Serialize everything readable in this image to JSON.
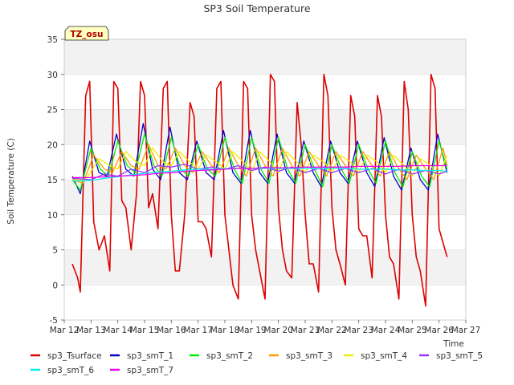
{
  "chart_data": {
    "type": "line",
    "title": "SP3 Soil Temperature",
    "xlabel": "Time",
    "ylabel": "Soil Temperature (C)",
    "ylim": [
      -5,
      35
    ],
    "yticks": [
      -5,
      0,
      5,
      10,
      15,
      20,
      25,
      30,
      35
    ],
    "xlim": [
      12,
      27
    ],
    "xtick_values": [
      12,
      13,
      14,
      15,
      16,
      17,
      18,
      19,
      20,
      21,
      22,
      23,
      24,
      25,
      26,
      27
    ],
    "xtick_labels": [
      "Mar 12",
      "Mar 13",
      "Mar 14",
      "Mar 15",
      "Mar 16",
      "Mar 17",
      "Mar 18",
      "Mar 19",
      "Mar 20",
      "Mar 21",
      "Mar 22",
      "Mar 23",
      "Mar 24",
      "Mar 25",
      "Mar 26",
      "Mar 27"
    ],
    "annotation": "TZ_osu",
    "grid": "horizontal bands",
    "legend_position": "bottom",
    "series": [
      {
        "name": "sp3_Tsurface",
        "color": "#dd0000",
        "x": [
          12.3,
          12.5,
          12.6,
          12.8,
          12.95,
          13.1,
          13.3,
          13.5,
          13.7,
          13.85,
          14.0,
          14.15,
          14.3,
          14.5,
          14.7,
          14.85,
          15.0,
          15.15,
          15.3,
          15.5,
          15.7,
          15.85,
          16.0,
          16.15,
          16.3,
          16.5,
          16.7,
          16.85,
          17.0,
          17.15,
          17.3,
          17.5,
          17.7,
          17.85,
          18.0,
          18.15,
          18.3,
          18.5,
          18.7,
          18.85,
          19.0,
          19.15,
          19.3,
          19.5,
          19.7,
          19.85,
          20.0,
          20.15,
          20.3,
          20.5,
          20.7,
          20.85,
          21.0,
          21.15,
          21.3,
          21.5,
          21.7,
          21.85,
          22.0,
          22.15,
          22.3,
          22.5,
          22.7,
          22.85,
          23.0,
          23.15,
          23.3,
          23.5,
          23.7,
          23.85,
          24.0,
          24.15,
          24.3,
          24.5,
          24.7,
          24.85,
          25.0,
          25.15,
          25.3,
          25.5,
          25.7,
          25.85,
          26.0,
          26.15,
          26.3
        ],
        "y": [
          3,
          1,
          -1,
          27,
          29,
          9,
          5,
          7,
          2,
          29,
          28,
          12,
          11,
          5,
          13,
          29,
          27,
          11,
          13,
          8,
          28,
          29,
          10,
          2,
          2,
          10,
          26,
          24,
          9,
          9,
          8,
          4,
          28,
          29,
          10,
          5,
          0,
          -2,
          29,
          28,
          10,
          5,
          2,
          -2,
          30,
          29,
          11,
          5,
          2,
          1,
          26,
          20,
          10,
          3,
          3,
          -1,
          30,
          27,
          11,
          5,
          3,
          0,
          27,
          24,
          8,
          7,
          7,
          1,
          27,
          24,
          10,
          4,
          3,
          -2,
          29,
          25,
          10,
          4,
          2,
          -3,
          30,
          28,
          8,
          6,
          4
        ]
      },
      {
        "name": "sp3_smT_1",
        "color": "#0000cc",
        "x": [
          12.3,
          12.6,
          12.95,
          13.3,
          13.6,
          13.95,
          14.3,
          14.6,
          14.95,
          15.3,
          15.6,
          15.95,
          16.3,
          16.6,
          16.95,
          17.3,
          17.6,
          17.95,
          18.3,
          18.6,
          18.95,
          19.3,
          19.6,
          19.95,
          20.3,
          20.6,
          20.95,
          21.3,
          21.6,
          21.95,
          22.3,
          22.6,
          22.95,
          23.3,
          23.6,
          23.95,
          24.3,
          24.6,
          24.95,
          25.3,
          25.6,
          25.95,
          26.3
        ],
        "y": [
          15.5,
          13,
          20.5,
          16,
          15.5,
          21.5,
          16.5,
          15.5,
          23,
          16.5,
          15,
          22.5,
          16,
          15,
          20.5,
          16,
          15,
          22,
          16,
          14.5,
          22,
          16,
          14.5,
          21.5,
          16,
          14.5,
          20.5,
          16,
          14,
          20.5,
          16,
          14.5,
          20.5,
          16,
          14,
          21,
          15.5,
          13.5,
          19.5,
          15,
          13.5,
          21.5,
          16
        ]
      },
      {
        "name": "sp3_smT_2",
        "color": "#00ee00",
        "x": [
          12.3,
          12.6,
          13.0,
          13.35,
          13.65,
          14.0,
          14.35,
          14.65,
          15.0,
          15.35,
          15.65,
          16.0,
          16.35,
          16.65,
          17.0,
          17.35,
          17.65,
          18.0,
          18.35,
          18.65,
          19.0,
          19.35,
          19.65,
          20.0,
          20.35,
          20.65,
          21.0,
          21.35,
          21.65,
          22.0,
          22.35,
          22.65,
          23.0,
          23.35,
          23.65,
          24.0,
          24.35,
          24.65,
          25.0,
          25.35,
          25.65,
          26.0,
          26.3
        ],
        "y": [
          15,
          13.5,
          19.5,
          16.5,
          15.5,
          20.5,
          17,
          16,
          21.5,
          17,
          15.5,
          21,
          16.5,
          15.5,
          20,
          16.5,
          15.5,
          21,
          16.5,
          14.5,
          21,
          16.5,
          14.5,
          21,
          16.5,
          14.5,
          20,
          16.5,
          14,
          20,
          16.5,
          14.5,
          20,
          16.5,
          14.5,
          20.5,
          16,
          14,
          19,
          15.5,
          14,
          20.5,
          16.5
        ]
      },
      {
        "name": "sp3_smT_3",
        "color": "#ff9900",
        "x": [
          12.3,
          12.7,
          13.1,
          13.5,
          13.8,
          14.15,
          14.5,
          14.8,
          15.15,
          15.5,
          15.8,
          16.15,
          16.5,
          16.8,
          17.15,
          17.5,
          17.8,
          18.15,
          18.5,
          18.8,
          19.15,
          19.5,
          19.8,
          20.15,
          20.5,
          20.8,
          21.15,
          21.5,
          21.8,
          22.15,
          22.5,
          22.8,
          23.15,
          23.5,
          23.8,
          24.15,
          24.5,
          24.8,
          25.15,
          25.5,
          25.8,
          26.15,
          26.3
        ],
        "y": [
          15,
          14.5,
          18.5,
          16.5,
          16,
          19,
          17,
          16.5,
          20,
          17,
          16.5,
          19.5,
          17,
          16,
          19,
          17,
          16,
          19.5,
          17,
          15.5,
          19.5,
          17,
          15.5,
          19.5,
          17,
          15.5,
          19,
          17,
          15.5,
          19,
          17,
          15.5,
          19,
          17,
          15.5,
          19,
          16.5,
          15,
          18.5,
          16.5,
          15,
          19.5,
          17
        ]
      },
      {
        "name": "sp3_smT_4",
        "color": "#eeee00",
        "x": [
          12.3,
          12.8,
          13.3,
          13.7,
          14.0,
          14.3,
          14.7,
          15.0,
          15.3,
          15.7,
          16.0,
          16.3,
          16.7,
          17.0,
          17.3,
          17.7,
          18.0,
          18.3,
          18.7,
          19.0,
          19.3,
          19.7,
          20.0,
          20.3,
          20.7,
          21.0,
          21.3,
          21.7,
          22.0,
          22.3,
          22.7,
          23.0,
          23.3,
          23.7,
          24.0,
          24.3,
          24.7,
          25.0,
          25.3,
          25.7,
          26.0,
          26.3
        ],
        "y": [
          15,
          15,
          18,
          17,
          16.5,
          19,
          17.5,
          17,
          19.5,
          17.5,
          17,
          19,
          17.5,
          16.5,
          18.5,
          17.5,
          16.5,
          19,
          17.5,
          16,
          19,
          17.5,
          16,
          19,
          17.5,
          16,
          18.5,
          17.5,
          16,
          18.5,
          17.5,
          16,
          18.5,
          17.5,
          16,
          18.5,
          17,
          15.5,
          18,
          17,
          15.5,
          18.5
        ]
      },
      {
        "name": "sp3_smT_5",
        "color": "#9933ff",
        "x": [
          12.3,
          13.0,
          13.5,
          14.0,
          14.5,
          15.0,
          15.5,
          16.0,
          16.5,
          17.0,
          17.5,
          18.0,
          18.5,
          19.0,
          19.5,
          20.0,
          20.5,
          21.0,
          21.5,
          22.0,
          22.5,
          23.0,
          23.5,
          24.0,
          24.5,
          25.0,
          25.5,
          26.0,
          26.3
        ],
        "y": [
          15.2,
          15,
          15.8,
          15.5,
          16.5,
          16,
          17,
          16.8,
          17.2,
          16.5,
          16.8,
          16.5,
          17,
          16.3,
          16.8,
          16.2,
          16.8,
          16,
          16.6,
          16,
          16.6,
          16,
          16.6,
          15.8,
          16.5,
          15.8,
          16.3,
          15.8,
          16.2
        ]
      },
      {
        "name": "sp3_smT_6",
        "color": "#00eeee",
        "x": [
          12.3,
          13.0,
          13.5,
          14.0,
          14.5,
          15.0,
          15.5,
          16.0,
          16.5,
          17.0,
          17.5,
          18.0,
          18.5,
          19.0,
          19.5,
          20.0,
          20.5,
          21.0,
          21.5,
          22.0,
          22.5,
          23.0,
          23.5,
          24.0,
          24.5,
          25.0,
          25.5,
          26.0,
          26.3
        ],
        "y": [
          14.8,
          14.9,
          15.2,
          15.4,
          15.7,
          15.9,
          16.1,
          16.2,
          16.4,
          16.5,
          16.5,
          16.6,
          16.6,
          16.6,
          16.6,
          16.6,
          16.6,
          16.6,
          16.6,
          16.6,
          16.6,
          16.5,
          16.5,
          16.5,
          16.4,
          16.4,
          16.3,
          16.3,
          16.2
        ]
      },
      {
        "name": "sp3_smT_7",
        "color": "#ee00ee",
        "x": [
          12.3,
          13.0,
          13.5,
          14.0,
          14.5,
          15.0,
          15.5,
          16.0,
          16.5,
          17.0,
          17.5,
          18.0,
          18.5,
          19.0,
          19.5,
          20.0,
          20.5,
          21.0,
          21.5,
          22.0,
          22.5,
          23.0,
          23.5,
          24.0,
          24.5,
          25.0,
          25.5,
          26.0,
          26.3
        ],
        "y": [
          15.3,
          15.3,
          15.4,
          15.5,
          15.6,
          15.7,
          15.9,
          16.0,
          16.2,
          16.3,
          16.4,
          16.5,
          16.6,
          16.6,
          16.7,
          16.7,
          16.7,
          16.8,
          16.8,
          16.8,
          16.8,
          16.9,
          16.9,
          16.9,
          16.9,
          17.0,
          17.0,
          17.0,
          17.0
        ]
      }
    ]
  }
}
